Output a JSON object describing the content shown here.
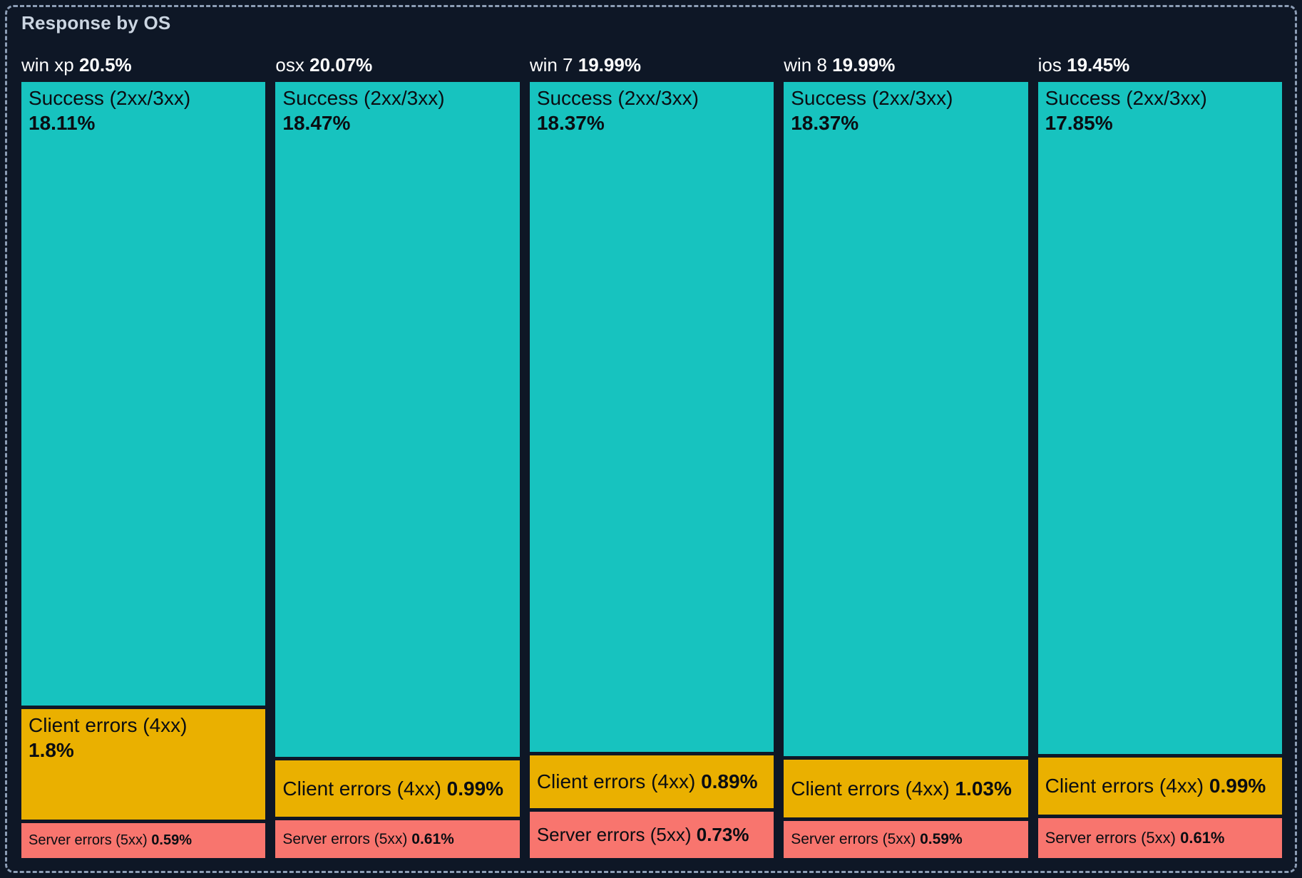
{
  "panel": {
    "title": "Response by OS"
  },
  "chart_data": {
    "type": "bar",
    "subtype": "stacked-percent-mosaic-treemap",
    "title": "Response by OS",
    "unit": "%",
    "legend_position": "none",
    "grid": false,
    "series_names": [
      "Success (2xx/3xx)",
      "Client errors (4xx)",
      "Server errors (5xx)"
    ],
    "colors": {
      "success": "#17c3bf",
      "client_errors": "#eab000",
      "server_errors": "#f8756e",
      "background": "#0e1726",
      "frame_dash": "#8c9db5",
      "title_text": "#cbd5e1",
      "column_label_text": "#ffffff",
      "segment_text": "#0a0d12"
    },
    "columns": [
      {
        "label": "win xp",
        "total_value": 20.5,
        "total_display": "20.5%",
        "segments": [
          {
            "name": "Success (2xx/3xx)",
            "kind": "success",
            "value": 18.11,
            "display": "18.11%"
          },
          {
            "name": "Client errors (4xx)",
            "kind": "client_errors",
            "value": 1.8,
            "display": "1.8%"
          },
          {
            "name": "Server errors (5xx)",
            "kind": "server_errors",
            "value": 0.59,
            "display": "0.59%"
          }
        ]
      },
      {
        "label": "osx",
        "total_value": 20.07,
        "total_display": "20.07%",
        "segments": [
          {
            "name": "Success (2xx/3xx)",
            "kind": "success",
            "value": 18.47,
            "display": "18.47%"
          },
          {
            "name": "Client errors (4xx)",
            "kind": "client_errors",
            "value": 0.99,
            "display": "0.99%"
          },
          {
            "name": "Server errors (5xx)",
            "kind": "server_errors",
            "value": 0.61,
            "display": "0.61%"
          }
        ]
      },
      {
        "label": "win 7",
        "total_value": 19.99,
        "total_display": "19.99%",
        "segments": [
          {
            "name": "Success (2xx/3xx)",
            "kind": "success",
            "value": 18.37,
            "display": "18.37%"
          },
          {
            "name": "Client errors (4xx)",
            "kind": "client_errors",
            "value": 0.89,
            "display": "0.89%"
          },
          {
            "name": "Server errors (5xx)",
            "kind": "server_errors",
            "value": 0.73,
            "display": "0.73%"
          }
        ]
      },
      {
        "label": "win 8",
        "total_value": 19.99,
        "total_display": "19.99%",
        "segments": [
          {
            "name": "Success (2xx/3xx)",
            "kind": "success",
            "value": 18.37,
            "display": "18.37%"
          },
          {
            "name": "Client errors (4xx)",
            "kind": "client_errors",
            "value": 1.03,
            "display": "1.03%"
          },
          {
            "name": "Server errors (5xx)",
            "kind": "server_errors",
            "value": 0.59,
            "display": "0.59%"
          }
        ]
      },
      {
        "label": "ios",
        "total_value": 19.45,
        "total_display": "19.45%",
        "segments": [
          {
            "name": "Success (2xx/3xx)",
            "kind": "success",
            "value": 17.85,
            "display": "17.85%"
          },
          {
            "name": "Client errors (4xx)",
            "kind": "client_errors",
            "value": 0.99,
            "display": "0.99%"
          },
          {
            "name": "Server errors (5xx)",
            "kind": "server_errors",
            "value": 0.61,
            "display": "0.61%"
          }
        ]
      }
    ]
  }
}
